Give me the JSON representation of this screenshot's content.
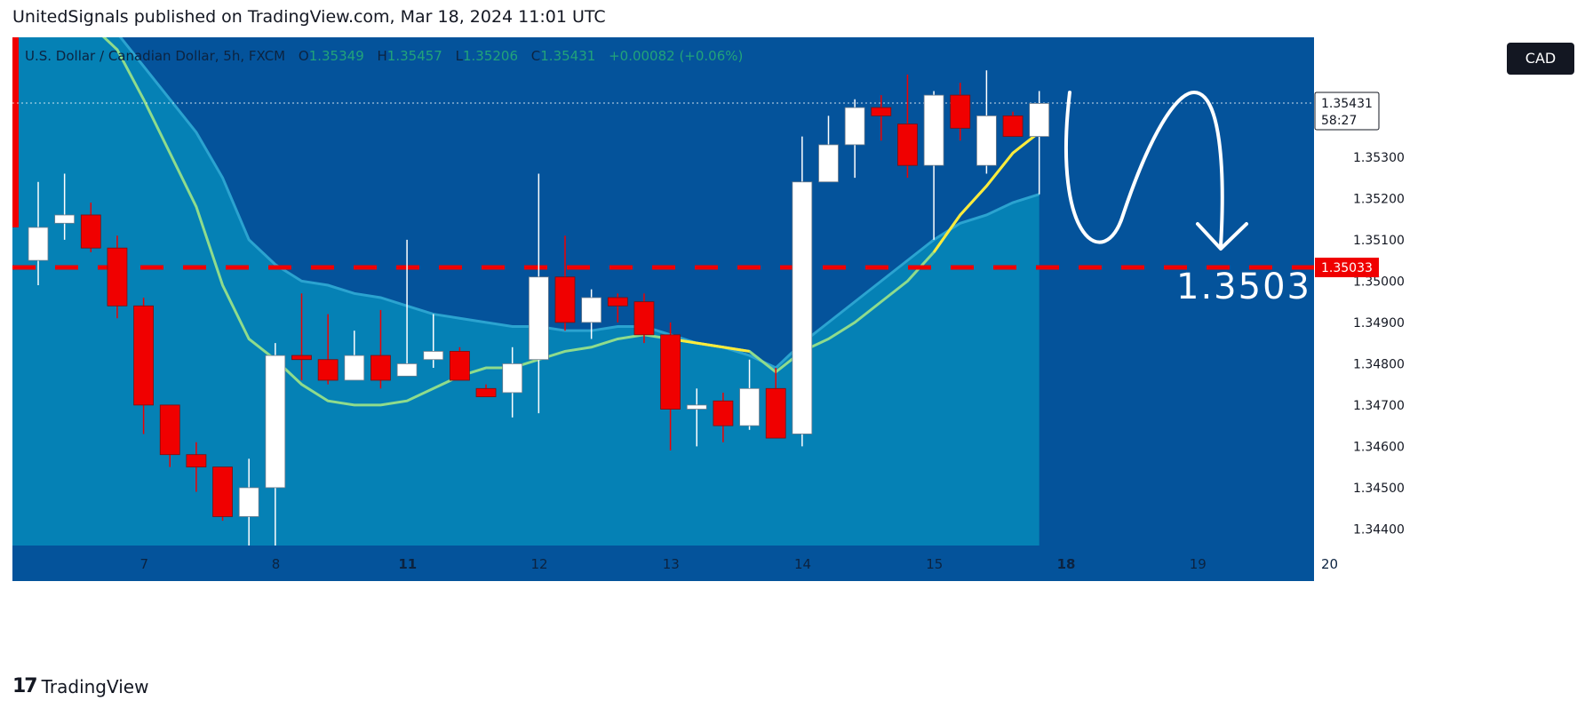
{
  "header": {
    "published_by": "UnitedSignals published on TradingView.com, Mar 18, 2024 11:01 UTC"
  },
  "legend": {
    "symbol": "U.S. Dollar / Canadian Dollar, 5h, FXCM",
    "o_label": "O",
    "o_value": "1.35349",
    "h_label": "H",
    "h_value": "1.35457",
    "l_label": "L",
    "l_value": "1.35206",
    "c_label": "C",
    "c_value": "1.35431",
    "change": "+0.00082 (+0.06%)"
  },
  "currency_button": "CAD",
  "price_axis": {
    "ticks": [
      "1.35300",
      "1.35200",
      "1.35100",
      "1.35000",
      "1.34900",
      "1.34800",
      "1.34700",
      "1.34600",
      "1.34500",
      "1.34400"
    ],
    "current_price": "1.35431",
    "countdown": "58:27",
    "level_label": "1.35033"
  },
  "annotation": {
    "level_text": "1.3503"
  },
  "footer": {
    "brand": "TradingView",
    "logo_text": "17"
  },
  "colors": {
    "background": "#04539b",
    "area": "#0686b8",
    "bull": "#ffffff",
    "bear": "#f00000",
    "ma_green": "#8fdc8c",
    "ma_yellow": "#ffeb3b",
    "level": "#f00000"
  },
  "chart_data": {
    "type": "candlestick",
    "symbol": "U.S. Dollar / Canadian Dollar",
    "timeframe": "5h",
    "x_ticks": [
      {
        "label": "7",
        "i": 2.5
      },
      {
        "label": "8",
        "i": 7.5
      },
      {
        "label": "11",
        "i": 12.5,
        "bold": true
      },
      {
        "label": "12",
        "i": 17.5
      },
      {
        "label": "13",
        "i": 22.5
      },
      {
        "label": "14",
        "i": 27.5
      },
      {
        "label": "15",
        "i": 32.5
      },
      {
        "label": "18",
        "i": 37.5,
        "bold": true
      },
      {
        "label": "19",
        "i": 42.5
      },
      {
        "label": "20",
        "i": 47.5
      }
    ],
    "ylim": [
      1.3436,
      1.3559
    ],
    "candles": [
      {
        "o": 1.3505,
        "h": 1.3524,
        "l": 1.3499,
        "c": 1.3513
      },
      {
        "o": 1.3514,
        "h": 1.3526,
        "l": 1.351,
        "c": 1.3516
      },
      {
        "o": 1.3516,
        "h": 1.3519,
        "l": 1.3507,
        "c": 1.3508
      },
      {
        "o": 1.3508,
        "h": 1.3511,
        "l": 1.3491,
        "c": 1.3494
      },
      {
        "o": 1.3494,
        "h": 1.3496,
        "l": 1.3463,
        "c": 1.347
      },
      {
        "o": 1.347,
        "h": 1.347,
        "l": 1.3455,
        "c": 1.3458
      },
      {
        "o": 1.3458,
        "h": 1.3461,
        "l": 1.3449,
        "c": 1.3455
      },
      {
        "o": 1.3455,
        "h": 1.3455,
        "l": 1.3442,
        "c": 1.3443
      },
      {
        "o": 1.3443,
        "h": 1.3457,
        "l": 1.3436,
        "c": 1.345
      },
      {
        "o": 1.345,
        "h": 1.3485,
        "l": 1.3436,
        "c": 1.3482
      },
      {
        "o": 1.3482,
        "h": 1.3497,
        "l": 1.3476,
        "c": 1.3481
      },
      {
        "o": 1.3481,
        "h": 1.3492,
        "l": 1.3475,
        "c": 1.3476
      },
      {
        "o": 1.3476,
        "h": 1.3488,
        "l": 1.3476,
        "c": 1.3482
      },
      {
        "o": 1.3482,
        "h": 1.3493,
        "l": 1.3474,
        "c": 1.3476
      },
      {
        "o": 1.3477,
        "h": 1.351,
        "l": 1.3477,
        "c": 1.348
      },
      {
        "o": 1.3481,
        "h": 1.3492,
        "l": 1.3479,
        "c": 1.3483
      },
      {
        "o": 1.3483,
        "h": 1.3484,
        "l": 1.3476,
        "c": 1.3476
      },
      {
        "o": 1.3474,
        "h": 1.3475,
        "l": 1.3472,
        "c": 1.3472
      },
      {
        "o": 1.3473,
        "h": 1.3484,
        "l": 1.3467,
        "c": 1.348
      },
      {
        "o": 1.3481,
        "h": 1.3526,
        "l": 1.3468,
        "c": 1.3501
      },
      {
        "o": 1.3501,
        "h": 1.3511,
        "l": 1.3488,
        "c": 1.349
      },
      {
        "o": 1.349,
        "h": 1.3498,
        "l": 1.3486,
        "c": 1.3496
      },
      {
        "o": 1.3496,
        "h": 1.3497,
        "l": 1.349,
        "c": 1.3494
      },
      {
        "o": 1.3495,
        "h": 1.3497,
        "l": 1.3485,
        "c": 1.3487
      },
      {
        "o": 1.3487,
        "h": 1.349,
        "l": 1.3459,
        "c": 1.3469
      },
      {
        "o": 1.3469,
        "h": 1.3474,
        "l": 1.346,
        "c": 1.347
      },
      {
        "o": 1.3471,
        "h": 1.3473,
        "l": 1.3461,
        "c": 1.3465
      },
      {
        "o": 1.3465,
        "h": 1.3481,
        "l": 1.3464,
        "c": 1.3474
      },
      {
        "o": 1.3474,
        "h": 1.3479,
        "l": 1.3462,
        "c": 1.3462
      },
      {
        "o": 1.3463,
        "h": 1.3535,
        "l": 1.346,
        "c": 1.3524
      },
      {
        "o": 1.3524,
        "h": 1.354,
        "l": 1.3524,
        "c": 1.3533
      },
      {
        "o": 1.3533,
        "h": 1.3544,
        "l": 1.3525,
        "c": 1.3542
      },
      {
        "o": 1.3542,
        "h": 1.3545,
        "l": 1.3534,
        "c": 1.354
      },
      {
        "o": 1.3538,
        "h": 1.355,
        "l": 1.3525,
        "c": 1.3528
      },
      {
        "o": 1.3528,
        "h": 1.3546,
        "l": 1.351,
        "c": 1.3545
      },
      {
        "o": 1.3545,
        "h": 1.3548,
        "l": 1.3534,
        "c": 1.3537
      },
      {
        "o": 1.3528,
        "h": 1.3551,
        "l": 1.3526,
        "c": 1.354
      },
      {
        "o": 1.354,
        "h": 1.3541,
        "l": 1.3535,
        "c": 1.3535
      },
      {
        "o": 1.3535,
        "h": 1.3546,
        "l": 1.3521,
        "c": 1.3543
      }
    ],
    "ma_short": [
      1.3574,
      1.3568,
      1.3562,
      1.3556,
      1.3544,
      1.3531,
      1.3518,
      1.3499,
      1.3486,
      1.3481,
      1.3475,
      1.3471,
      1.347,
      1.347,
      1.3471,
      1.3474,
      1.3477,
      1.3479,
      1.3479,
      1.3481,
      1.3483,
      1.3484,
      1.3486,
      1.3487,
      1.3486,
      1.3485,
      1.3484,
      1.3483,
      1.3478,
      1.3483,
      1.3486,
      1.349,
      1.3495,
      1.35,
      1.3507,
      1.3516,
      1.3523,
      1.3531,
      1.3536
    ],
    "ma_long": [
      1.358,
      1.3574,
      1.3566,
      1.356,
      1.3552,
      1.3544,
      1.3536,
      1.3525,
      1.351,
      1.3504,
      1.35,
      1.3499,
      1.3497,
      1.3496,
      1.3494,
      1.3492,
      1.3491,
      1.349,
      1.3489,
      1.3489,
      1.3488,
      1.3488,
      1.3489,
      1.3489,
      1.3487,
      1.3485,
      1.3484,
      1.3482,
      1.3479,
      1.3485,
      1.349,
      1.3495,
      1.35,
      1.3505,
      1.351,
      1.3514,
      1.3516,
      1.3519,
      1.3521
    ],
    "level": 1.35033
  }
}
